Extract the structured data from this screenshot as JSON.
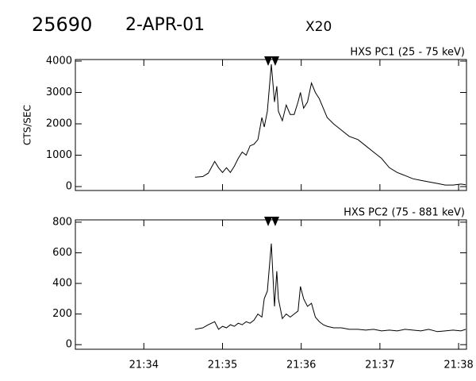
{
  "header": {
    "id": "25690",
    "date": "2-APR-01",
    "scale": "X20"
  },
  "chart_data": [
    {
      "type": "line",
      "title": "HXS PC1 (25 - 75 keV)",
      "ylabel": "CTS/SEC",
      "color": "#000000",
      "xlim": [
        33.13,
        38.1
      ],
      "ylim": [
        -125,
        4050
      ],
      "yticks": [
        0,
        1000,
        2000,
        3000,
        4000
      ],
      "markers": [
        35.58,
        35.67
      ],
      "x": [
        34.65,
        34.75,
        34.82,
        34.9,
        34.95,
        35.0,
        35.05,
        35.1,
        35.15,
        35.2,
        35.25,
        35.3,
        35.35,
        35.4,
        35.45,
        35.5,
        35.53,
        35.57,
        35.62,
        35.66,
        35.69,
        35.71,
        35.76,
        35.81,
        35.86,
        35.91,
        35.96,
        35.99,
        36.03,
        36.08,
        36.13,
        36.18,
        36.23,
        36.28,
        36.33,
        36.41,
        36.51,
        36.61,
        36.72,
        36.82,
        36.92,
        37.02,
        37.12,
        37.22,
        37.32,
        37.42,
        37.52,
        37.62,
        37.73,
        37.83,
        37.93,
        38.03,
        38.09
      ],
      "values": [
        300,
        320,
        430,
        800,
        600,
        450,
        600,
        450,
        650,
        900,
        1100,
        1000,
        1300,
        1350,
        1500,
        2200,
        1900,
        2400,
        3900,
        2700,
        3200,
        2400,
        2100,
        2600,
        2300,
        2300,
        2700,
        3000,
        2500,
        2700,
        3300,
        3000,
        2800,
        2500,
        2200,
        2000,
        1800,
        1600,
        1500,
        1300,
        1100,
        900,
        600,
        450,
        350,
        250,
        200,
        150,
        100,
        50,
        50,
        80,
        60
      ]
    },
    {
      "type": "line",
      "title": "HXS PC2 (75 - 881 keV)",
      "color": "#000000",
      "xlim": [
        33.13,
        38.1
      ],
      "ylim": [
        -30,
        815
      ],
      "yticks": [
        0,
        200,
        400,
        600,
        800
      ],
      "xticks": [
        {
          "value": 34,
          "label": "21:34"
        },
        {
          "value": 35,
          "label": "21:35"
        },
        {
          "value": 36,
          "label": "21:36"
        },
        {
          "value": 37,
          "label": "21:37"
        },
        {
          "value": 38,
          "label": "21:38"
        }
      ],
      "markers": [
        35.58,
        35.67
      ],
      "x": [
        34.65,
        34.75,
        34.82,
        34.9,
        34.95,
        35.0,
        35.05,
        35.1,
        35.15,
        35.2,
        35.25,
        35.3,
        35.35,
        35.4,
        35.45,
        35.5,
        35.53,
        35.57,
        35.62,
        35.66,
        35.69,
        35.71,
        35.76,
        35.81,
        35.86,
        35.91,
        35.96,
        35.99,
        36.03,
        36.08,
        36.13,
        36.18,
        36.23,
        36.28,
        36.33,
        36.41,
        36.51,
        36.61,
        36.72,
        36.82,
        36.92,
        37.02,
        37.12,
        37.22,
        37.32,
        37.42,
        37.52,
        37.62,
        37.73,
        37.83,
        37.93,
        38.03,
        38.09
      ],
      "values": [
        100,
        110,
        130,
        150,
        100,
        120,
        110,
        130,
        120,
        140,
        130,
        150,
        140,
        160,
        200,
        180,
        300,
        350,
        660,
        250,
        480,
        300,
        170,
        200,
        180,
        200,
        220,
        380,
        300,
        250,
        270,
        180,
        150,
        130,
        120,
        110,
        110,
        100,
        100,
        95,
        100,
        90,
        95,
        90,
        100,
        95,
        90,
        100,
        85,
        90,
        95,
        90,
        100
      ]
    }
  ]
}
